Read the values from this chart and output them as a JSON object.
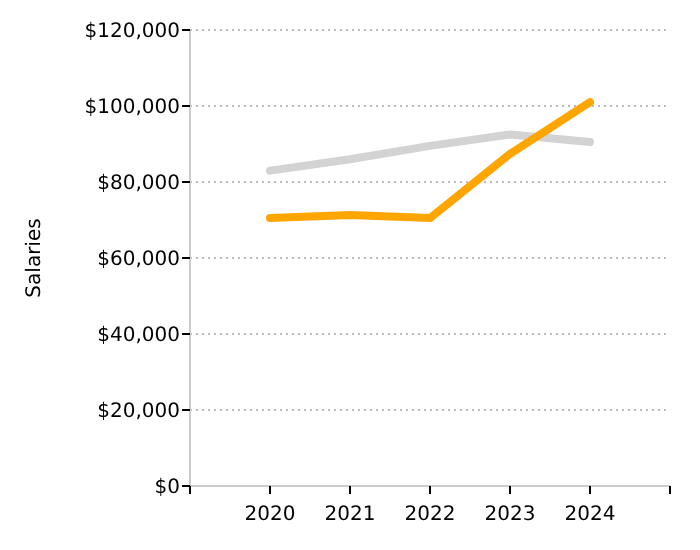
{
  "chart_data": {
    "type": "line",
    "ylabel": "Salaries",
    "x": [
      2020,
      2021,
      2022,
      2023,
      2024
    ],
    "series": [
      {
        "color": "#d3d3d3",
        "values": [
          83000,
          86000,
          89500,
          92500,
          90500
        ]
      },
      {
        "color": "#ffa500",
        "values": [
          70500,
          71300,
          70500,
          87400,
          101000
        ]
      }
    ],
    "xlim": [
      2019,
      2025
    ],
    "xticks": [
      {
        "value": 2019,
        "label": null
      },
      2020,
      2021,
      2022,
      2023,
      2024,
      {
        "value": 2025,
        "label": null
      }
    ],
    "ylim": [
      0,
      120000
    ],
    "yticks": [
      {
        "value": 0,
        "label": "$0"
      },
      {
        "value": 20000,
        "label": "$20,000"
      },
      {
        "value": 40000,
        "label": "$40,000"
      },
      {
        "value": 60000,
        "label": "$60,000"
      },
      {
        "value": 80000,
        "label": "$80,000"
      },
      {
        "value": 100000,
        "label": "$100,000"
      },
      {
        "value": 120000,
        "label": "$120,000"
      }
    ],
    "grid": "y",
    "marker": "none",
    "line_style": "solid"
  }
}
